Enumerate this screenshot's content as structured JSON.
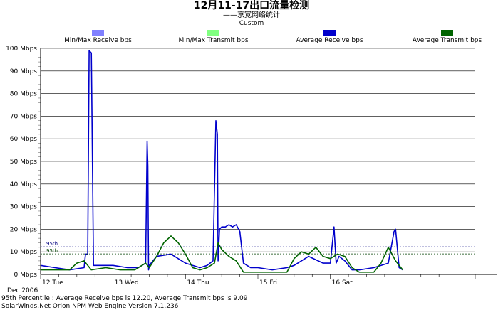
{
  "chart_data": {
    "type": "line",
    "title": "12月11-17出口流量检测",
    "subtitle": "——京宽网络统计",
    "subtitle2": "Custom",
    "ylim": [
      0,
      100
    ],
    "y_ticks": [
      "0 Mbps",
      "10 Mbps",
      "20 Mbps",
      "30 Mbps",
      "40 Mbps",
      "50 Mbps",
      "60 Mbps",
      "70 Mbps",
      "80 Mbps",
      "90 Mbps",
      "100 Mbps"
    ],
    "x_ticks": [
      "12 Tue",
      "13 Wed",
      "14 Thu",
      "15 Fri",
      "16 Sat"
    ],
    "x_range_days": [
      12,
      18
    ],
    "x_unit": "Dec 2006 (day of month)",
    "legend": [
      {
        "label": "Min/Max Receive bps",
        "color": "#8080ff"
      },
      {
        "label": "Min/Max Transmit bps",
        "color": "#80ff80"
      },
      {
        "label": "Average Receive bps",
        "color": "#0000cc"
      },
      {
        "label": "Average Transmit bps",
        "color": "#006400"
      }
    ],
    "percentile_lines": [
      {
        "label": "95th",
        "value": 12.2,
        "color": "#000080"
      },
      {
        "label": "95th",
        "value": 9.09,
        "color": "#004000"
      }
    ],
    "series": [
      {
        "name": "Average Receive bps",
        "color": "#0000cc",
        "x": [
          12.0,
          12.2,
          12.4,
          12.6,
          12.62,
          12.65,
          12.67,
          12.7,
          12.73,
          12.8,
          13.0,
          13.2,
          13.35,
          13.45,
          13.47,
          13.48,
          13.49,
          13.5,
          13.6,
          13.8,
          14.0,
          14.2,
          14.3,
          14.38,
          14.42,
          14.44,
          14.45,
          14.47,
          14.5,
          14.55,
          14.6,
          14.65,
          14.7,
          14.75,
          14.8,
          14.85,
          14.9,
          15.0,
          15.2,
          15.4,
          15.5,
          15.6,
          15.7,
          15.9,
          16.0,
          16.05,
          16.08,
          16.12,
          16.2,
          16.3,
          16.4,
          16.6,
          16.8,
          16.88,
          16.9,
          16.95,
          17.0
        ],
        "y": [
          4,
          3,
          2,
          3,
          9,
          9,
          99,
          98,
          4,
          4,
          4,
          3,
          3,
          5,
          59,
          48,
          2,
          4,
          8,
          9,
          5,
          3,
          4,
          6,
          68,
          62,
          6,
          20,
          21,
          21,
          22,
          21,
          22,
          19,
          5,
          4,
          3,
          3,
          2,
          3,
          4,
          6,
          8,
          5,
          5,
          21,
          5,
          8,
          6,
          2,
          2,
          3,
          5,
          19,
          20,
          3,
          2
        ]
      },
      {
        "name": "Average Transmit bps",
        "color": "#006400",
        "x": [
          12.0,
          12.2,
          12.4,
          12.5,
          12.6,
          12.7,
          12.9,
          13.1,
          13.3,
          13.45,
          13.5,
          13.6,
          13.7,
          13.8,
          13.9,
          14.0,
          14.1,
          14.2,
          14.3,
          14.4,
          14.45,
          14.5,
          14.6,
          14.7,
          14.8,
          15.0,
          15.2,
          15.4,
          15.5,
          15.6,
          15.7,
          15.8,
          15.9,
          16.0,
          16.1,
          16.2,
          16.3,
          16.4,
          16.6,
          16.7,
          16.8,
          16.9,
          17.0
        ],
        "y": [
          2,
          2,
          2,
          5,
          6,
          2,
          3,
          2,
          2,
          5,
          3,
          8,
          14,
          17,
          14,
          9,
          3,
          2,
          3,
          5,
          14,
          11,
          8,
          6,
          1,
          1,
          1,
          1,
          7,
          10,
          9,
          12,
          8,
          7,
          9,
          8,
          3,
          1,
          1,
          5,
          12,
          6,
          2
        ]
      }
    ]
  },
  "footer": {
    "date": "Dec 2006",
    "percentile": "95th Percentile : Average Receive bps is 12.20, Average Transmit bps is 9.09",
    "engine": "SolarWinds.Net Orion NPM Web Engine  Version 7.1.236"
  }
}
